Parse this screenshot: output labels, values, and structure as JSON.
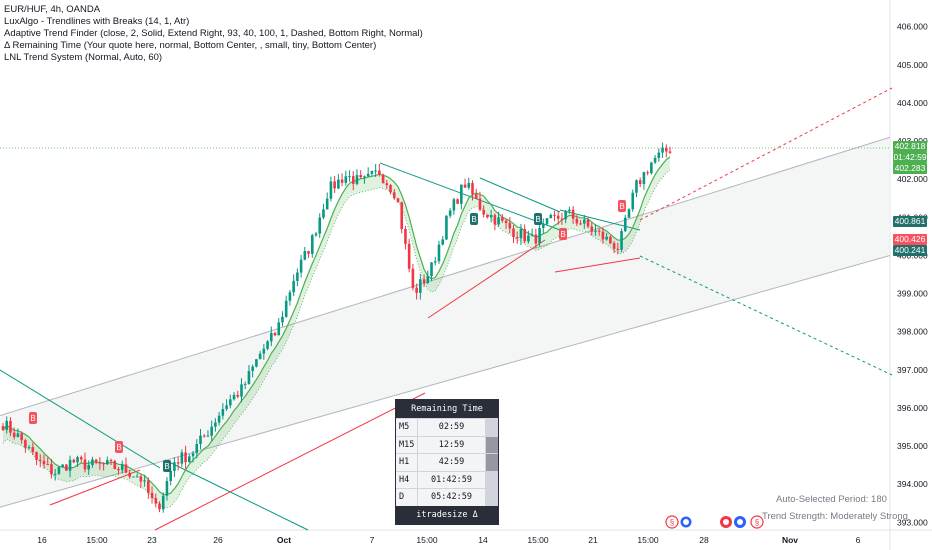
{
  "legend": {
    "line1": "EUR/HUF, 4h, OANDA",
    "line2": "LuxAlgo - Trendlines with Breaks (14, 1, Atr)",
    "line3": "Adaptive Trend Finder (close, 2, Solid, Extend Right, 93, 40, 100, 1, Dashed, Bottom Right, Normal)",
    "line4": "Δ Remaining Time (Your quote here, normal, Bottom Center, , small, tiny, Bottom Center)",
    "line5": "LNL Trend System (Normal, Auto, 60)"
  },
  "price_tags": {
    "last_price": "402.818",
    "countdown": "01:42:59",
    "green_level": "402.283",
    "teal_level": "400.861",
    "red_level": "400.426",
    "teal_level2": "400.241"
  },
  "remaining_time": {
    "title": "Remaining Time",
    "rows": [
      {
        "tf": "M5",
        "time": "02:59"
      },
      {
        "tf": "M15",
        "time": "12:59"
      },
      {
        "tf": "H1",
        "time": "42:59"
      },
      {
        "tf": "H4",
        "time": "01:42:59"
      },
      {
        "tf": "D",
        "time": "05:42:59"
      }
    ],
    "footer": "itradesize Δ"
  },
  "trend_info": {
    "period": "Auto-Selected Period: 180",
    "strength": "Trend Strength: Moderately Strong"
  },
  "colors": {
    "bull": "#089981",
    "bear": "#f23645",
    "channel": "#b2b5be",
    "trend_green": "#4caf50",
    "teal_badge": "#22706b"
  },
  "chart_data": {
    "type": "candlestick",
    "title": "EUR/HUF, 4h, OANDA",
    "y_ticks": [
      393.0,
      394.0,
      395.0,
      396.0,
      397.0,
      398.0,
      399.0,
      400.0,
      401.0,
      402.0,
      403.0,
      404.0,
      405.0,
      406.0
    ],
    "y_tick_labels": [
      "393.000",
      "394.000",
      "395.000",
      "396.000",
      "397.000",
      "398.000",
      "399.000",
      "400.000",
      "401.000",
      "402.000",
      "403.000",
      "404.000",
      "405.000",
      "406.000"
    ],
    "ylim": [
      392.8,
      406.7
    ],
    "x_tick_labels": [
      "16",
      "15:00",
      "23",
      "26",
      "Oct",
      "7",
      "15:00",
      "14",
      "15:00",
      "21",
      "15:00",
      "28",
      "Nov",
      "6"
    ],
    "close_path": [
      395.6,
      395.2,
      394.6,
      394.3,
      394.6,
      394.5,
      394.5,
      394.4,
      394.2,
      393.3,
      394.6,
      394.8,
      395.4,
      396.1,
      396.5,
      397.4,
      398.0,
      399.4,
      400.3,
      401.7,
      402.1,
      401.9,
      402.2,
      401.6,
      399.0,
      399.6,
      401.0,
      401.9,
      401.2,
      400.9,
      400.6,
      400.4,
      400.9,
      401.1,
      400.8,
      400.5,
      400.2,
      401.8,
      402.5,
      402.8
    ],
    "channel": {
      "upper_start": 395.8,
      "upper_end": 403.1,
      "mid_start": 394.7,
      "mid_end": 401.9,
      "lower_start": 393.4,
      "lower_end": 400.0
    }
  }
}
